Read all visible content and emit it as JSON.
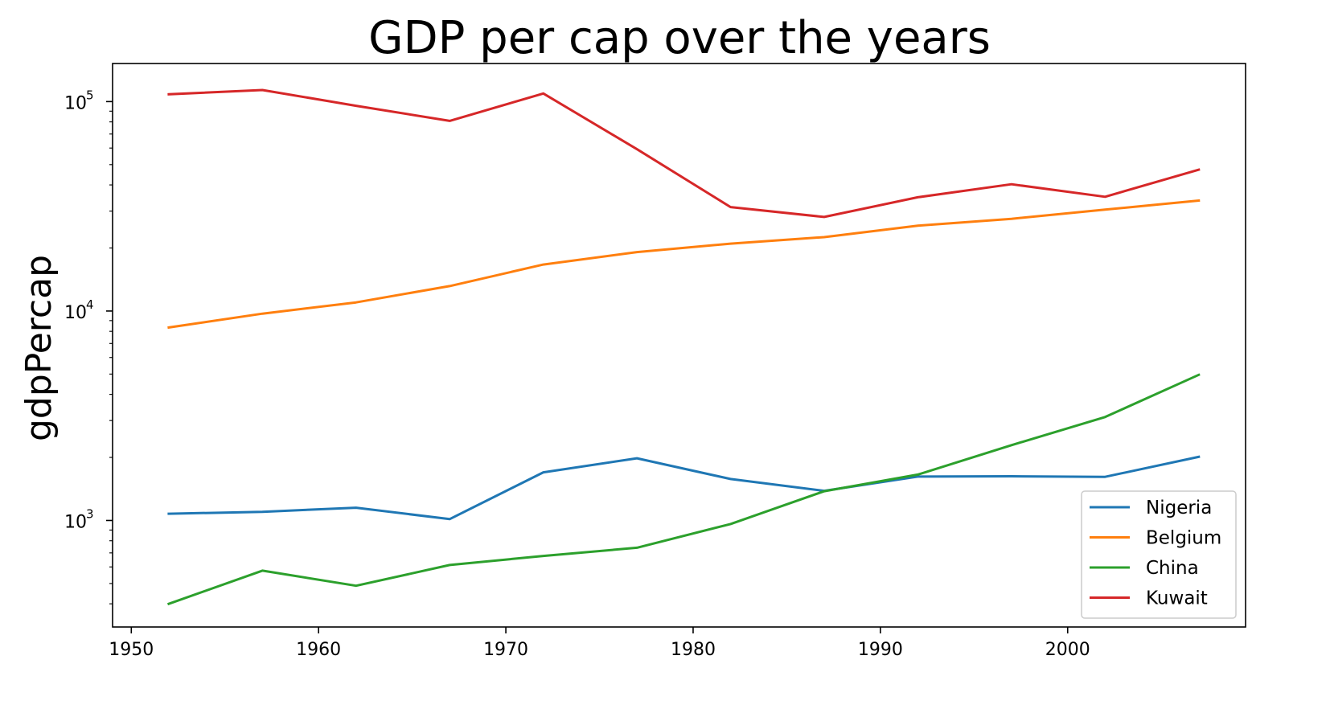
{
  "chart_data": {
    "type": "line",
    "title": "GDP per cap over the years",
    "xlabel": "",
    "ylabel": "gdpPercap",
    "yscale": "log",
    "xlim": [
      1949,
      2009.5
    ],
    "ylim": [
      310,
      152000
    ],
    "x_ticks": [
      1950,
      1960,
      1970,
      1980,
      1990,
      2000
    ],
    "y_ticks": [
      {
        "value": 1000,
        "base": "10",
        "exp": "3"
      },
      {
        "value": 10000,
        "base": "10",
        "exp": "4"
      },
      {
        "value": 100000,
        "base": "10",
        "exp": "5"
      }
    ],
    "x": [
      1952,
      1957,
      1962,
      1967,
      1972,
      1977,
      1982,
      1987,
      1992,
      1997,
      2002,
      2007
    ],
    "series": [
      {
        "name": "Nigeria",
        "color": "#1f77b4",
        "values": [
          1077,
          1100,
          1151,
          1015,
          1698,
          1982,
          1577,
          1385,
          1620,
          1625,
          1615,
          2014
        ]
      },
      {
        "name": "Belgium",
        "color": "#ff7f0e",
        "values": [
          8343,
          9715,
          10991,
          13149,
          16672,
          19118,
          20980,
          22526,
          25576,
          27561,
          30486,
          33693
        ]
      },
      {
        "name": "China",
        "color": "#2ca02c",
        "values": [
          400,
          576,
          488,
          613,
          677,
          741,
          962,
          1379,
          1656,
          2289,
          3119,
          4959
        ]
      },
      {
        "name": "Kuwait",
        "color": "#d62728",
        "values": [
          108382,
          113523,
          95458,
          80895,
          109348,
          59265,
          31354,
          28118,
          34933,
          40301,
          35110,
          47307
        ]
      }
    ],
    "legend_position": "lower-right"
  }
}
